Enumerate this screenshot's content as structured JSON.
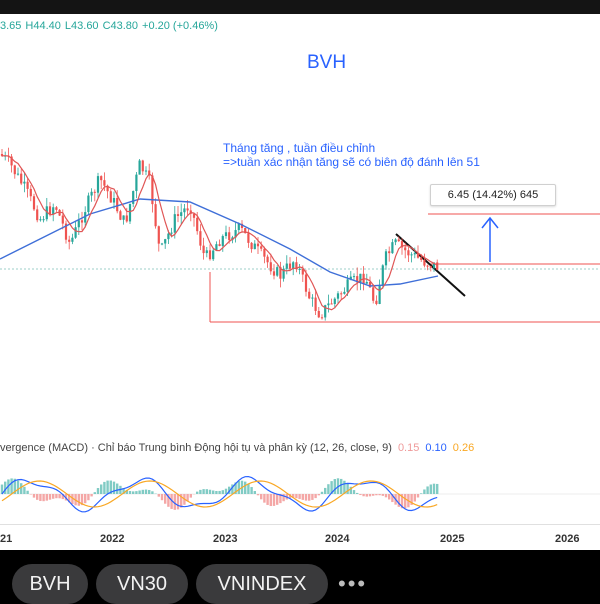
{
  "ohlc": {
    "open": "3.65",
    "high": "H44.40",
    "low": "L43.60",
    "close": "C43.80",
    "change": "+0.20 (+0.46%)"
  },
  "chart": {
    "symbol": "BVH",
    "annotation_line1": "Tháng tăng , tuần điều chỉnh",
    "annotation_line2": "=>tuần xác nhận tăng sẽ có biên độ đánh lên 51",
    "measure_label": "6.45 (14.42%) 645",
    "macd_legend": "vergence (MACD) · Chỉ báo Trung bình Động hội tụ và phân kỳ (12, 26, close, 9)",
    "macd_values": [
      "0.15",
      "0.10",
      "0.26"
    ],
    "years": [
      "21",
      "2022",
      "2023",
      "2024",
      "2025",
      "2026"
    ],
    "colors": {
      "up": "#26a69a",
      "down": "#ef5350",
      "accent": "#2962ff",
      "signal": "#f9a825"
    }
  },
  "tabs": [
    {
      "label": "BVH"
    },
    {
      "label": "VN30"
    },
    {
      "label": "VNINDEX"
    }
  ],
  "more_label": "•••"
}
